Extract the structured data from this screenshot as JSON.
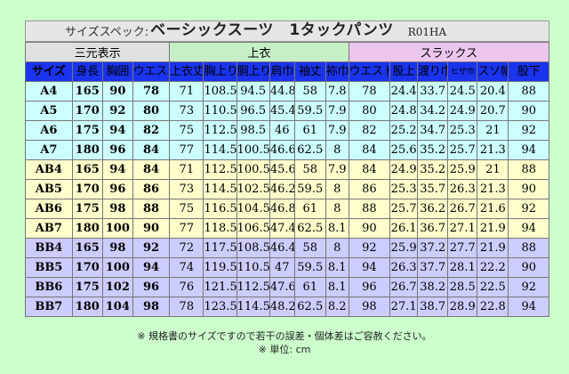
{
  "title": {
    "prefix": "サイズスペック:",
    "main": "ベーシックスーツ　1タックパンツ",
    "code": "R01HA"
  },
  "groups": [
    {
      "label": "三元表示",
      "span": 4
    },
    {
      "label": "上衣",
      "span": 6
    },
    {
      "label": "スラックス",
      "span": 6
    }
  ],
  "headers": [
    "サイズ",
    "身長",
    "胸囲",
    "ウエスト",
    "上衣丈",
    "胸上り",
    "胴上り",
    "肩巾",
    "袖丈",
    "袮巾",
    "ウエスト",
    "股上",
    "渡り巾",
    "ヒザ巾",
    "スソ幅",
    "股下"
  ],
  "rows": [
    {
      "band": "cyan",
      "cells": [
        "A4",
        "165",
        "90",
        "78",
        "71",
        "108.5",
        "94.5",
        "44.8",
        "58",
        "7.8",
        "78",
        "24.4",
        "33.7",
        "24.5",
        "20.4",
        "88"
      ]
    },
    {
      "band": "cyan",
      "cells": [
        "A5",
        "170",
        "92",
        "80",
        "73",
        "110.5",
        "96.5",
        "45.4",
        "59.5",
        "7.9",
        "80",
        "24.8",
        "34.2",
        "24.9",
        "20.7",
        "90"
      ]
    },
    {
      "band": "cyan",
      "cells": [
        "A6",
        "175",
        "94",
        "82",
        "75",
        "112.5",
        "98.5",
        "46",
        "61",
        "7.9",
        "82",
        "25.2",
        "34.7",
        "25.3",
        "21",
        "92"
      ]
    },
    {
      "band": "cyan",
      "cells": [
        "A7",
        "180",
        "96",
        "84",
        "77",
        "114.5",
        "100.5",
        "46.6",
        "62.5",
        "8",
        "84",
        "25.6",
        "35.2",
        "25.7",
        "21.3",
        "94"
      ]
    },
    {
      "band": "yellow",
      "cells": [
        "AB4",
        "165",
        "94",
        "84",
        "71",
        "112.5",
        "100.5",
        "45.6",
        "58",
        "7.9",
        "84",
        "24.9",
        "35.2",
        "25.9",
        "21",
        "88"
      ]
    },
    {
      "band": "yellow",
      "cells": [
        "AB5",
        "170",
        "96",
        "86",
        "73",
        "114.5",
        "102.5",
        "46.2",
        "59.5",
        "8",
        "86",
        "25.3",
        "35.7",
        "26.3",
        "21.3",
        "90"
      ]
    },
    {
      "band": "yellow",
      "cells": [
        "AB6",
        "175",
        "98",
        "88",
        "75",
        "116.5",
        "104.5",
        "46.8",
        "61",
        "8",
        "88",
        "25.7",
        "36.2",
        "26.7",
        "21.6",
        "92"
      ]
    },
    {
      "band": "yellow",
      "cells": [
        "AB7",
        "180",
        "100",
        "90",
        "77",
        "118.5",
        "106.5",
        "47.4",
        "62.5",
        "8.1",
        "90",
        "26.1",
        "36.7",
        "27.1",
        "21.9",
        "94"
      ]
    },
    {
      "band": "lav",
      "cells": [
        "BB4",
        "165",
        "98",
        "92",
        "72",
        "117.5",
        "108.5",
        "46.4",
        "58",
        "8",
        "92",
        "25.9",
        "37.2",
        "27.7",
        "21.9",
        "88"
      ]
    },
    {
      "band": "lav",
      "cells": [
        "BB5",
        "170",
        "100",
        "94",
        "74",
        "119.5",
        "110.5",
        "47",
        "59.5",
        "8.1",
        "94",
        "26.3",
        "37.7",
        "28.1",
        "22.2",
        "90"
      ]
    },
    {
      "band": "lav",
      "cells": [
        "BB6",
        "175",
        "102",
        "96",
        "76",
        "121.5",
        "112.5",
        "47.6",
        "61",
        "8.1",
        "96",
        "26.7",
        "38.2",
        "28.5",
        "22.5",
        "92"
      ]
    },
    {
      "band": "lav",
      "cells": [
        "BB7",
        "180",
        "104",
        "98",
        "78",
        "123.5",
        "114.5",
        "48.2",
        "62.5",
        "8.2",
        "98",
        "27.1",
        "38.7",
        "28.9",
        "22.8",
        "94"
      ]
    }
  ],
  "notes": [
    "※ 規格書のサイズですので若干の誤差・個体差はご容赦ください。",
    "※ 単位: cm"
  ],
  "colors": {
    "background": "#ccffcc",
    "header": "#1a33ee",
    "band_a": "#ccffff",
    "band_ab": "#ffffcc",
    "band_bb": "#ccccff",
    "group_sangen": "#e0e0e0",
    "group_joui": "#c6efc6",
    "group_slacks": "#ecc6ec"
  }
}
